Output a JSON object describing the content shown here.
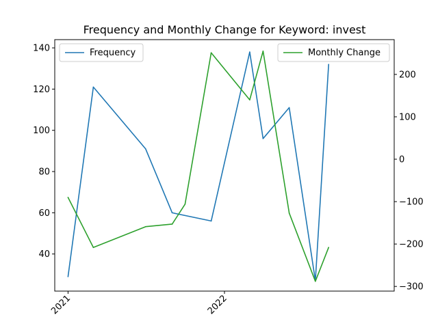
{
  "chart_data": {
    "type": "line",
    "title": "Frequency and Monthly Change for Keyword: invest",
    "x_tick_labels": [
      "2021",
      "2022"
    ],
    "x_tick_dates": [
      "2021-01-01",
      "2022-01-01"
    ],
    "x_range": [
      "2020-12-01",
      "2023-02-01"
    ],
    "left_axis": {
      "ylim": [
        22,
        144
      ],
      "ticks": [
        40,
        60,
        80,
        100,
        120,
        140
      ]
    },
    "right_axis": {
      "ylim": [
        -311,
        282
      ],
      "ticks": [
        -300,
        -200,
        -100,
        0,
        100,
        200
      ]
    },
    "grid": false,
    "series": [
      {
        "name": "Frequency",
        "axis": "left",
        "color": "#1f77b4",
        "legend_position": "top-left",
        "x": [
          "2021-01-01",
          "2021-03-01",
          "2021-07-01",
          "2021-09-01",
          "2021-12-01",
          "2022-03-01",
          "2022-04-01",
          "2022-06-01",
          "2022-08-01",
          "2022-09-01"
        ],
        "y": [
          29,
          121,
          91,
          60,
          56,
          138,
          96,
          111,
          27,
          132
        ]
      },
      {
        "name": "Monthly Change",
        "axis": "right",
        "color": "#2ca02c",
        "legend_position": "top-right",
        "x": [
          "2021-01-01",
          "2021-03-01",
          "2021-07-01",
          "2021-09-01",
          "2021-10-01",
          "2021-12-01",
          "2022-03-01",
          "2022-04-01",
          "2022-06-01",
          "2022-08-01",
          "2022-09-01"
        ],
        "y": [
          -90,
          -208,
          -159,
          -153,
          -106,
          251,
          140,
          255,
          -127,
          -288,
          -208
        ]
      }
    ]
  }
}
